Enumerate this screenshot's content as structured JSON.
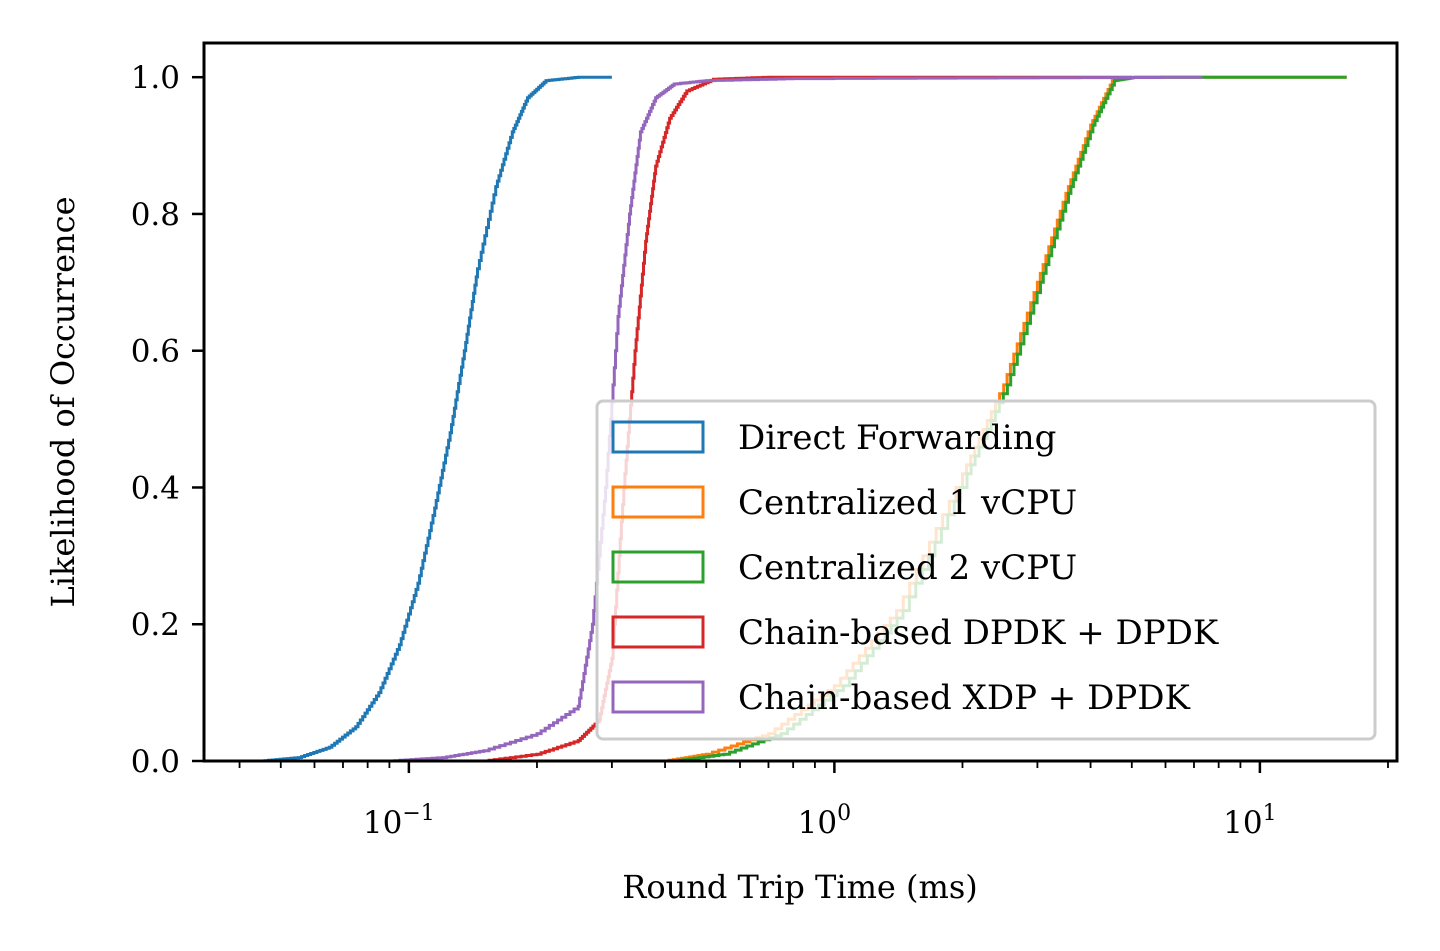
{
  "chart_data": {
    "type": "line",
    "subtype": "empirical CDF (step)",
    "title": "",
    "xlabel": "Round Trip Time (ms)",
    "ylabel": "Likelihood of Occurrence",
    "xscale": "log",
    "xlim": [
      0.033,
      21
    ],
    "ylim": [
      0,
      1.05
    ],
    "x_ticks": [
      {
        "value": 0.1,
        "base": "10",
        "exp": "−1"
      },
      {
        "value": 1,
        "base": "10",
        "exp": "0"
      },
      {
        "value": 10,
        "base": "10",
        "exp": "1"
      }
    ],
    "y_ticks": [
      "0.0",
      "0.2",
      "0.4",
      "0.6",
      "0.8",
      "1.0"
    ],
    "grid": false,
    "legend_position": "lower right",
    "series": [
      {
        "name": "Direct Forwarding",
        "color": "#1f77b4",
        "points": [
          [
            0.045,
            0.0
          ],
          [
            0.055,
            0.005
          ],
          [
            0.065,
            0.02
          ],
          [
            0.075,
            0.05
          ],
          [
            0.085,
            0.1
          ],
          [
            0.095,
            0.17
          ],
          [
            0.105,
            0.26
          ],
          [
            0.115,
            0.37
          ],
          [
            0.125,
            0.48
          ],
          [
            0.135,
            0.6
          ],
          [
            0.145,
            0.72
          ],
          [
            0.16,
            0.84
          ],
          [
            0.175,
            0.92
          ],
          [
            0.19,
            0.97
          ],
          [
            0.21,
            0.995
          ],
          [
            0.25,
            1.0
          ],
          [
            0.3,
            1.0
          ]
        ]
      },
      {
        "name": "Centralized 1 vCPU",
        "color": "#ff7f0e",
        "points": [
          [
            0.4,
            0.0
          ],
          [
            0.5,
            0.01
          ],
          [
            0.7,
            0.04
          ],
          [
            1.0,
            0.11
          ],
          [
            1.4,
            0.22
          ],
          [
            2.0,
            0.42
          ],
          [
            2.5,
            0.55
          ],
          [
            3.0,
            0.7
          ],
          [
            3.5,
            0.83
          ],
          [
            4.0,
            0.93
          ],
          [
            4.5,
            0.995
          ],
          [
            5.0,
            1.0
          ],
          [
            16.0,
            1.0
          ]
        ]
      },
      {
        "name": "Centralized 2 vCPU",
        "color": "#2ca02c",
        "points": [
          [
            0.42,
            0.0
          ],
          [
            0.55,
            0.01
          ],
          [
            0.75,
            0.04
          ],
          [
            1.05,
            0.11
          ],
          [
            1.45,
            0.22
          ],
          [
            2.05,
            0.42
          ],
          [
            2.55,
            0.55
          ],
          [
            3.05,
            0.7
          ],
          [
            3.55,
            0.83
          ],
          [
            4.05,
            0.93
          ],
          [
            4.55,
            0.995
          ],
          [
            5.1,
            1.0
          ],
          [
            16.0,
            1.0
          ]
        ]
      },
      {
        "name": "Chain-based DPDK + DPDK",
        "color": "#d62728",
        "points": [
          [
            0.15,
            0.0
          ],
          [
            0.2,
            0.01
          ],
          [
            0.25,
            0.03
          ],
          [
            0.28,
            0.06
          ],
          [
            0.3,
            0.15
          ],
          [
            0.32,
            0.4
          ],
          [
            0.34,
            0.6
          ],
          [
            0.36,
            0.76
          ],
          [
            0.38,
            0.87
          ],
          [
            0.41,
            0.94
          ],
          [
            0.45,
            0.98
          ],
          [
            0.52,
            0.997
          ],
          [
            0.7,
            1.0
          ],
          [
            5.0,
            1.0
          ]
        ]
      },
      {
        "name": "Chain-based XDP + DPDK",
        "color": "#9467bd",
        "points": [
          [
            0.09,
            0.0
          ],
          [
            0.12,
            0.005
          ],
          [
            0.15,
            0.015
          ],
          [
            0.2,
            0.04
          ],
          [
            0.25,
            0.08
          ],
          [
            0.27,
            0.2
          ],
          [
            0.29,
            0.4
          ],
          [
            0.31,
            0.65
          ],
          [
            0.33,
            0.8
          ],
          [
            0.35,
            0.92
          ],
          [
            0.38,
            0.97
          ],
          [
            0.42,
            0.99
          ],
          [
            0.5,
            0.995
          ],
          [
            0.8,
            0.998
          ],
          [
            7.3,
            1.0
          ]
        ]
      }
    ]
  }
}
